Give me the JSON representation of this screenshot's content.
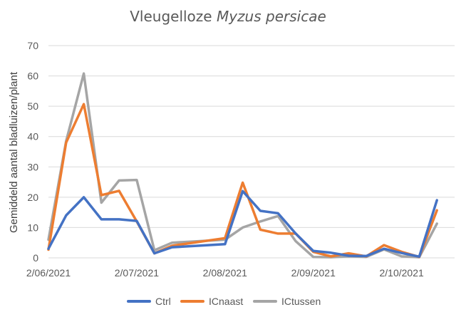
{
  "chart_data": {
    "type": "line",
    "title_plain": "Vleugelloze",
    "title_italic": "Myzus persicae",
    "xlabel": "",
    "ylabel": "Gemiddeld aantal bladluizen/plant",
    "ylim": [
      0,
      70
    ],
    "yticks": [
      0,
      10,
      20,
      30,
      40,
      50,
      60,
      70
    ],
    "x_tick_labels": [
      "2/06/2021",
      "2/07/2021",
      "2/08/2021",
      "2/09/2021",
      "2/10/2021"
    ],
    "x_tick_index": [
      0,
      5,
      10,
      15,
      20
    ],
    "grid": true,
    "legend_position": "bottom",
    "colors": {
      "Ctrl": "#4472c4",
      "ICnaast": "#ed7d31",
      "ICtussen": "#a5a5a5"
    },
    "x_count": 24,
    "series": [
      {
        "name": "Ctrl",
        "values": [
          3,
          14,
          20,
          12.7,
          12.7,
          12.2,
          1.5,
          3.5,
          4.5,
          22,
          15.5,
          14.7,
          8,
          2.3,
          1.7,
          0.7,
          0.6,
          3,
          1.6,
          0.4,
          19
        ]
      },
      {
        "name": "ICnaast",
        "values": [
          2.7,
          38,
          50.7,
          20.7,
          22.1,
          12,
          1.5,
          4,
          6.5,
          24.8,
          9.3,
          8,
          8,
          2,
          0.5,
          1.5,
          0.5,
          4.2,
          2,
          0.3,
          15.7
        ]
      },
      {
        "name": "ICtussen",
        "values": [
          6,
          38.5,
          60.8,
          18.2,
          25.5,
          25.7,
          2.5,
          5,
          6,
          10,
          12,
          13.8,
          5.5,
          0.3,
          0.2,
          0.5,
          0.3,
          2.8,
          0.5,
          0.2,
          11.3
        ]
      }
    ]
  }
}
